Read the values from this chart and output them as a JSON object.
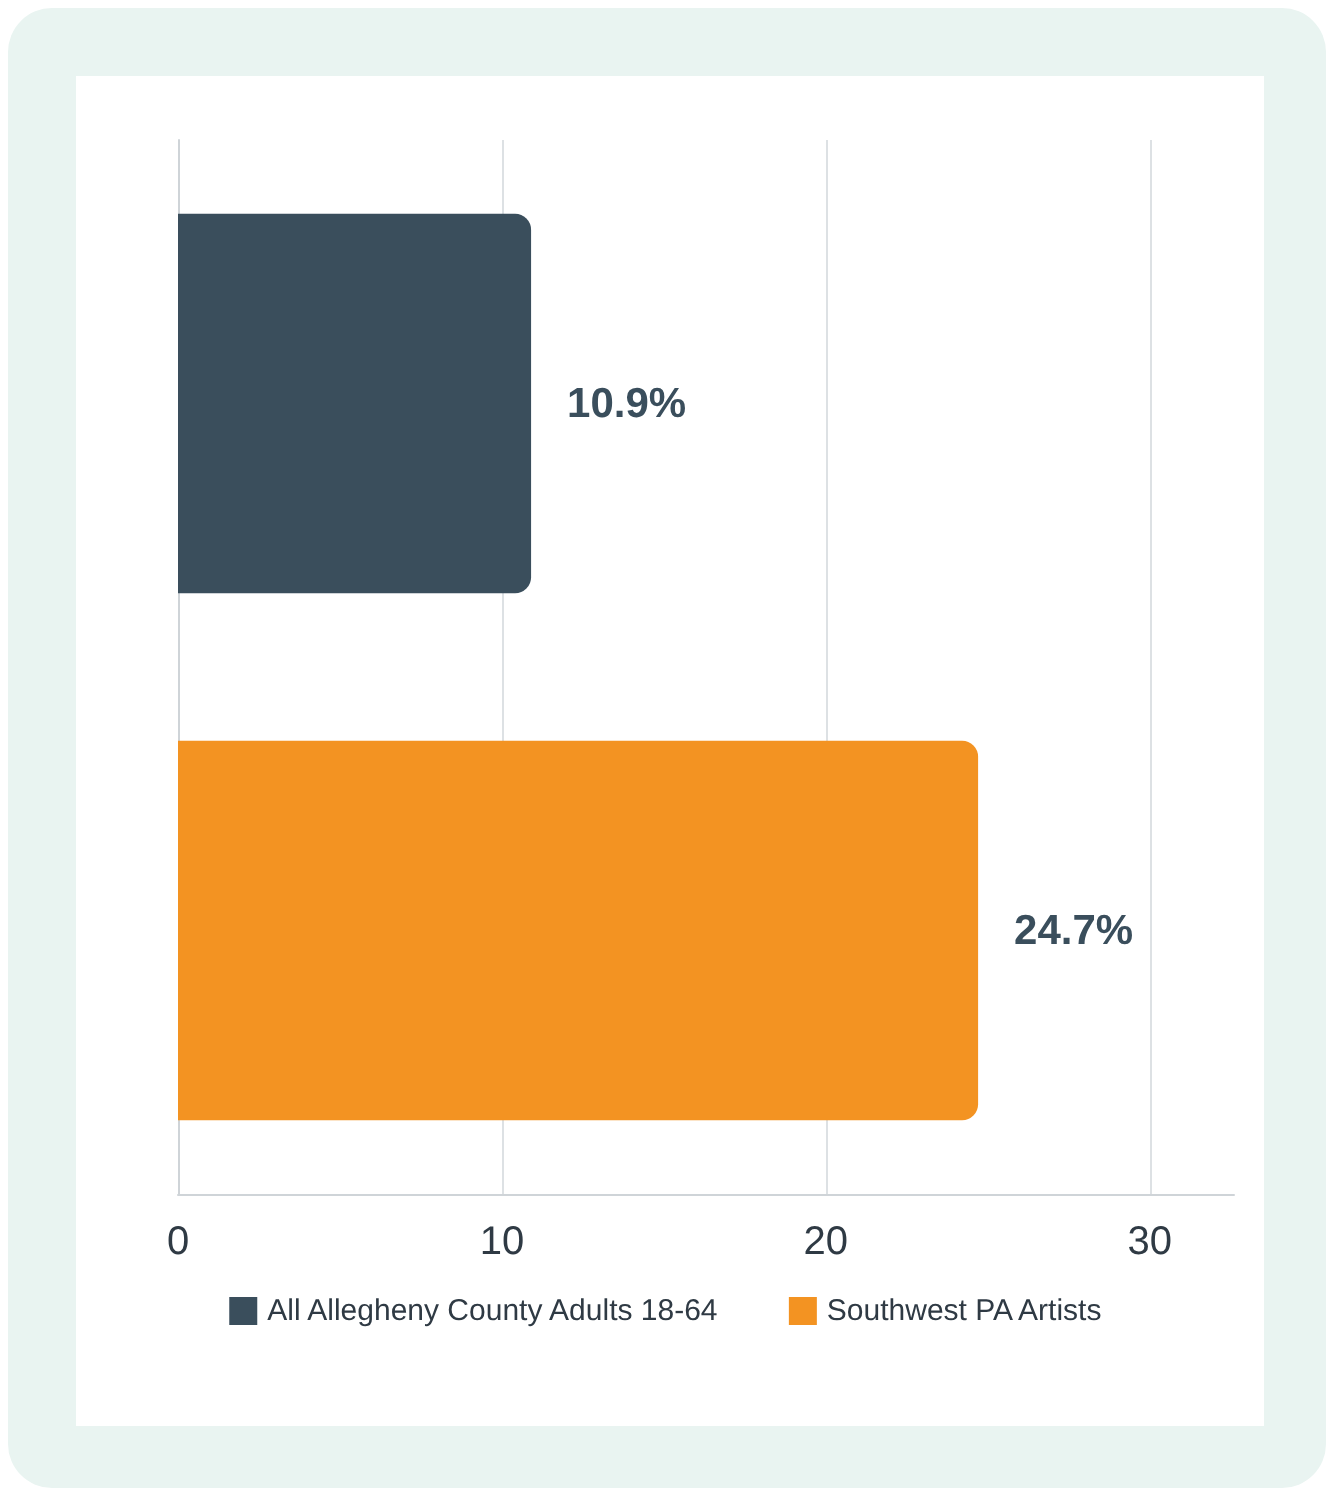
{
  "chart_data": {
    "type": "bar",
    "orientation": "horizontal",
    "categories": [
      null,
      null
    ],
    "series": [
      {
        "name": "All Allegheny County Adults 18-64",
        "color": "#3a4e5c",
        "values": [
          10.9,
          null
        ],
        "value_labels": [
          "10.9%",
          null
        ]
      },
      {
        "name": "Southwest PA Artists",
        "color": "#f39322",
        "values": [
          null,
          24.7
        ],
        "value_labels": [
          null,
          "24.7%"
        ]
      }
    ],
    "xlim": [
      0,
      32.6
    ],
    "xticks": [
      0,
      10,
      20,
      30
    ],
    "grid": "x",
    "legend": "bottom"
  }
}
